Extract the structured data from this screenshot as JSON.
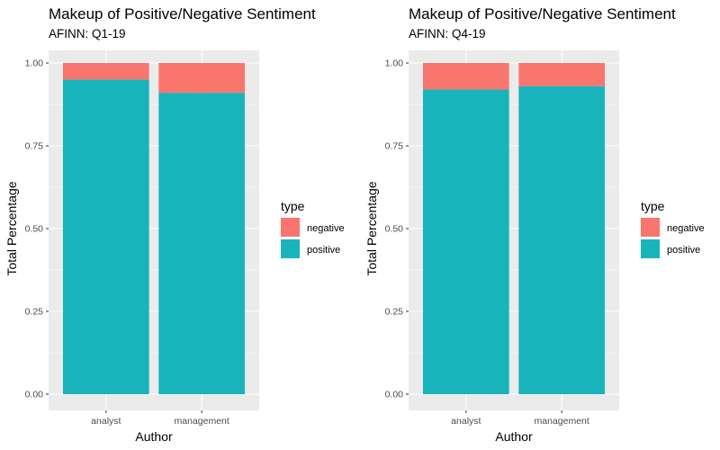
{
  "colors": {
    "negative": "#F8766D",
    "positive": "#19B4BB",
    "panel": "#EBEBEB",
    "grid": "#FFFFFF"
  },
  "legend": {
    "title": "type",
    "items": [
      {
        "label": "negative",
        "key": "negative"
      },
      {
        "label": "positive",
        "key": "positive"
      }
    ]
  },
  "chart_data": [
    {
      "type": "bar",
      "stacked": true,
      "title": "Makeup of Positive/Negative Sentiment",
      "subtitle": "AFINN: Q1-19",
      "xlabel": "Author",
      "ylabel": "Total Percentage",
      "categories": [
        "analyst",
        "management"
      ],
      "ylim": [
        0,
        1
      ],
      "yticks": [
        "0.00",
        "0.25",
        "0.50",
        "0.75",
        "1.00"
      ],
      "grid": true,
      "legend_position": "right",
      "series": [
        {
          "name": "positive",
          "values": [
            0.95,
            0.91
          ]
        },
        {
          "name": "negative",
          "values": [
            0.05,
            0.09
          ]
        }
      ]
    },
    {
      "type": "bar",
      "stacked": true,
      "title": "Makeup of Positive/Negative Sentiment",
      "subtitle": "AFINN: Q4-19",
      "xlabel": "Author",
      "ylabel": "Total Percentage",
      "categories": [
        "analyst",
        "management"
      ],
      "ylim": [
        0,
        1
      ],
      "yticks": [
        "0.00",
        "0.25",
        "0.50",
        "0.75",
        "1.00"
      ],
      "grid": true,
      "legend_position": "right",
      "series": [
        {
          "name": "positive",
          "values": [
            0.92,
            0.93
          ]
        },
        {
          "name": "negative",
          "values": [
            0.08,
            0.07
          ]
        }
      ]
    }
  ]
}
